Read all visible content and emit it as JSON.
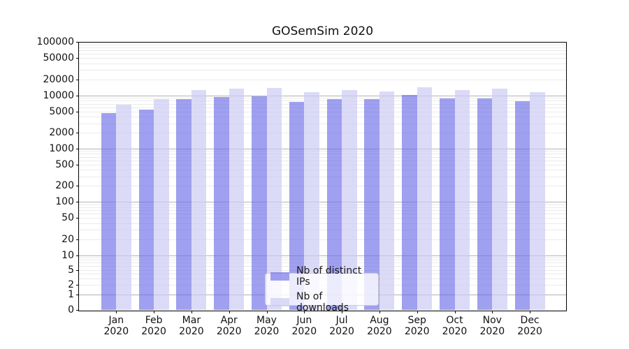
{
  "title": "GOSemSim 2020",
  "chart_data": {
    "type": "bar",
    "title": "GOSemSim 2020",
    "categories": [
      "Jan 2020",
      "Feb 2020",
      "Mar 2020",
      "Apr 2020",
      "May 2020",
      "Jun 2020",
      "Jul 2020",
      "Aug 2020",
      "Sep 2020",
      "Oct 2020",
      "Nov 2020",
      "Dec 2020"
    ],
    "month_labels": [
      "Jan",
      "Feb",
      "Mar",
      "Apr",
      "May",
      "Jun",
      "Jul",
      "Aug",
      "Sep",
      "Oct",
      "Nov",
      "Dec"
    ],
    "year_label": "2020",
    "series": [
      {
        "name": "Nb of distinct IPs",
        "color_hex": "#a3a3f0",
        "color_rgba": "rgba(102,102,230,0.62)",
        "values": [
          4600,
          5400,
          8500,
          9300,
          9600,
          7600,
          8500,
          8400,
          10100,
          8700,
          8800,
          7700
        ]
      },
      {
        "name": "Nb of downloads",
        "color_hex": "#dbdbf7",
        "color_rgba": "rgba(204,204,245,0.7)",
        "values": [
          6700,
          8600,
          12600,
          13300,
          13700,
          11400,
          12700,
          12000,
          14400,
          12600,
          13400,
          11400
        ]
      }
    ],
    "xlabel": "",
    "ylabel": "",
    "y_axis": {
      "scale": "symlog",
      "ylim": [
        0,
        100000
      ],
      "tick_labels": [
        "100000",
        "50000",
        "20000",
        "10000",
        "5000",
        "2000",
        "1000",
        "500",
        "200",
        "100",
        "50",
        "20",
        "10",
        "5",
        "2",
        "1",
        "0"
      ],
      "tick_values": [
        100000,
        50000,
        20000,
        10000,
        5000,
        2000,
        1000,
        500,
        200,
        100,
        50,
        20,
        10,
        5,
        2,
        1,
        0
      ],
      "major_grid_values": [
        1,
        10,
        100,
        1000,
        10000
      ],
      "grid": "both"
    },
    "legend_position": "lower center",
    "colors": {
      "major_grid": "#b3b3b3",
      "minor_grid": "#ebebeb",
      "spine": "#000000",
      "text": "#1a1a1a"
    }
  }
}
